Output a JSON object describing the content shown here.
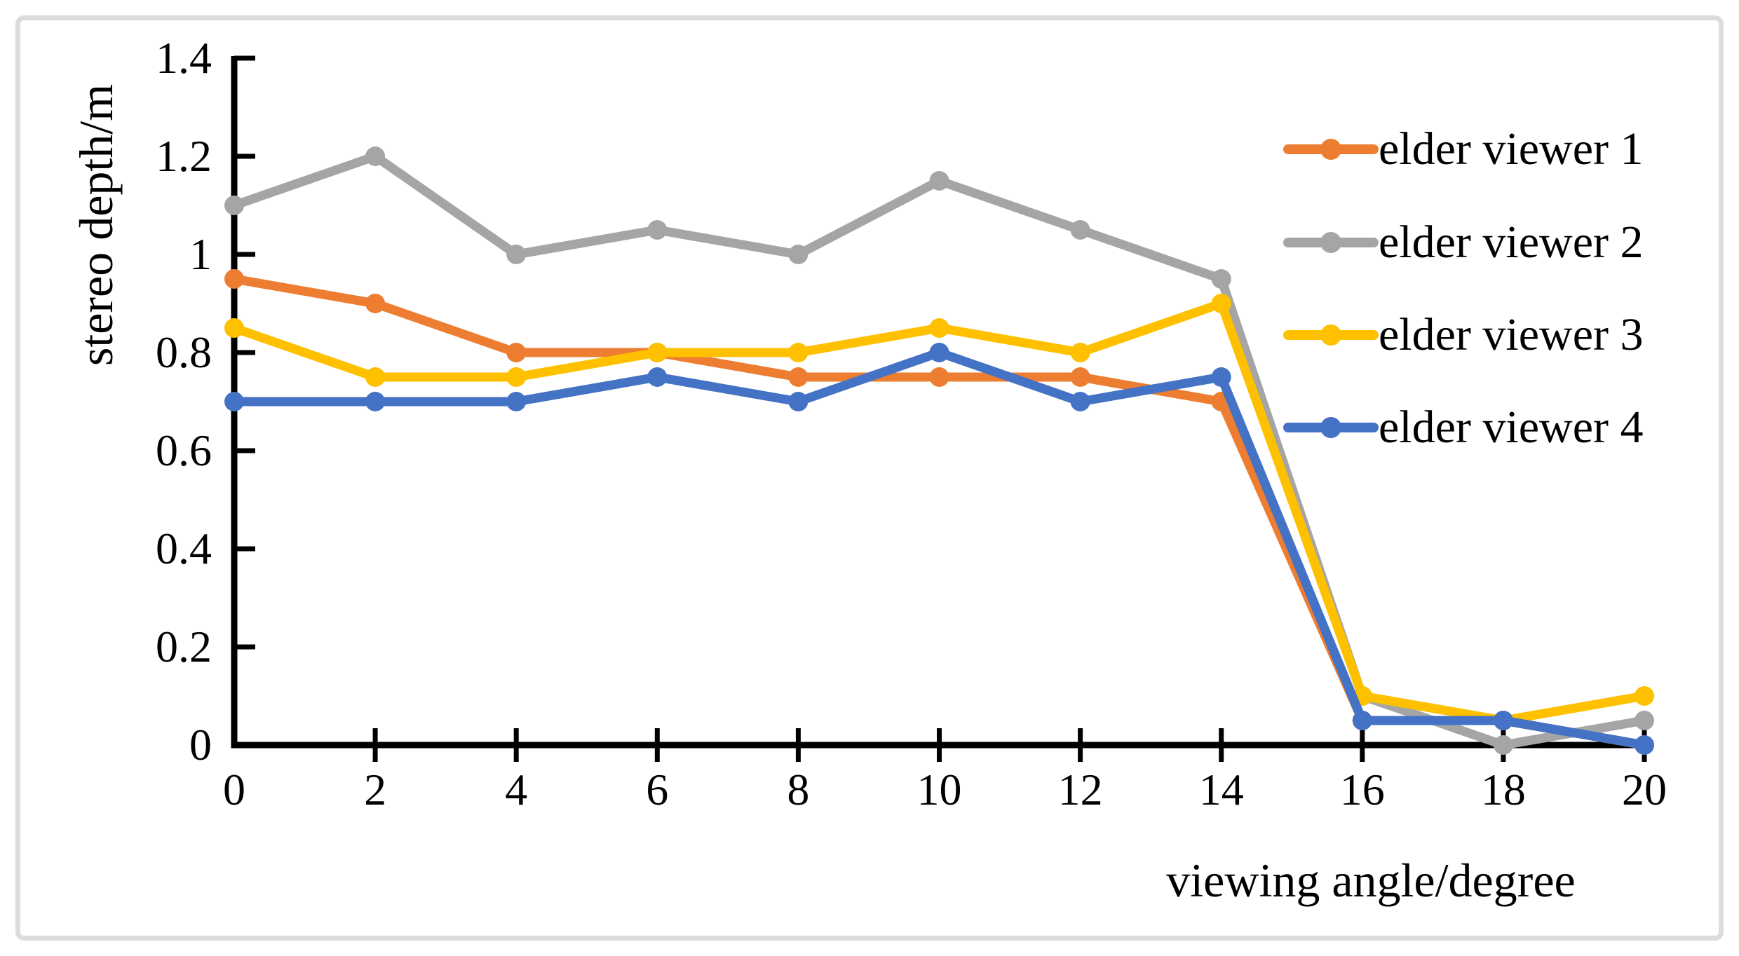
{
  "axes": {
    "x_title": "viewing angle/degree",
    "y_title": "stereo depth/m",
    "x_tick_labels": [
      "0",
      "2",
      "4",
      "6",
      "8",
      "10",
      "12",
      "14",
      "16",
      "18",
      "20"
    ],
    "y_tick_labels": [
      "0",
      "0.2",
      "0.4",
      "0.6",
      "0.8",
      "1",
      "1.2",
      "1.4"
    ],
    "axis_color": "#000000",
    "frame_border_color": "#dcdcdc"
  },
  "chart_data": {
    "type": "line",
    "title": "",
    "xlabel": "viewing angle/degree",
    "ylabel": "stereo depth/m",
    "x": [
      0,
      2,
      4,
      6,
      8,
      10,
      12,
      14,
      16,
      18,
      20
    ],
    "xlim": [
      0,
      20
    ],
    "ylim": [
      0,
      1.4
    ],
    "x_tick_step": 2,
    "y_tick_step": 0.2,
    "grid": false,
    "legend_position": "top-right",
    "marker": "circle",
    "series": [
      {
        "name": "elder viewer 1",
        "color": "#ED7D31",
        "values": [
          0.95,
          0.9,
          0.8,
          0.8,
          0.75,
          0.75,
          0.75,
          0.7,
          0.05,
          0.05,
          0.0
        ]
      },
      {
        "name": "elder viewer 2",
        "color": "#A5A5A5",
        "values": [
          1.1,
          1.2,
          1.0,
          1.05,
          1.0,
          1.15,
          1.05,
          0.95,
          0.1,
          0.0,
          0.05
        ]
      },
      {
        "name": "elder viewer 3",
        "color": "#FFC000",
        "values": [
          0.85,
          0.75,
          0.75,
          0.8,
          0.8,
          0.85,
          0.8,
          0.9,
          0.1,
          0.05,
          0.1
        ]
      },
      {
        "name": "elder viewer 4",
        "color": "#4472C4",
        "values": [
          0.7,
          0.7,
          0.7,
          0.75,
          0.7,
          0.8,
          0.7,
          0.75,
          0.05,
          0.05,
          0.0
        ]
      }
    ]
  }
}
